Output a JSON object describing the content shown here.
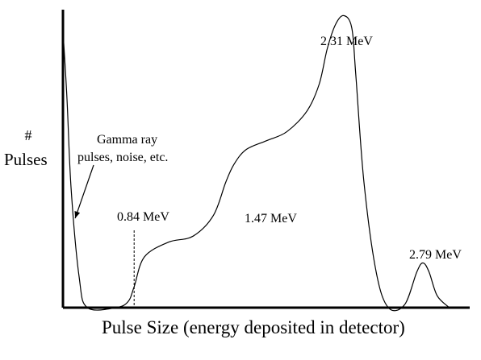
{
  "chart_data": {
    "type": "line",
    "title": "",
    "xlabel": "Pulse Size (energy deposited in detector)",
    "ylabel_symbol": "#",
    "ylabel": "Pulses",
    "grid": false,
    "legend": "none",
    "series": [
      {
        "color": "#000000",
        "points": [
          [
            0.0,
            0.93
          ],
          [
            0.01,
            0.7
          ],
          [
            0.02,
            0.4
          ],
          [
            0.04,
            0.1
          ],
          [
            0.06,
            0.0
          ],
          [
            0.13,
            0.0
          ],
          [
            0.16,
            0.02
          ],
          [
            0.175,
            0.07
          ],
          [
            0.2,
            0.17
          ],
          [
            0.26,
            0.22
          ],
          [
            0.32,
            0.24
          ],
          [
            0.37,
            0.31
          ],
          [
            0.4,
            0.42
          ],
          [
            0.42,
            0.48
          ],
          [
            0.45,
            0.53
          ],
          [
            0.5,
            0.56
          ],
          [
            0.55,
            0.59
          ],
          [
            0.6,
            0.66
          ],
          [
            0.63,
            0.75
          ],
          [
            0.65,
            0.87
          ],
          [
            0.67,
            0.95
          ],
          [
            0.69,
            0.98
          ],
          [
            0.71,
            0.94
          ],
          [
            0.72,
            0.78
          ],
          [
            0.74,
            0.42
          ],
          [
            0.77,
            0.12
          ],
          [
            0.8,
            0.0
          ],
          [
            0.84,
            0.01
          ],
          [
            0.87,
            0.12
          ],
          [
            0.885,
            0.15
          ],
          [
            0.9,
            0.12
          ],
          [
            0.92,
            0.04
          ],
          [
            0.95,
            0.0
          ]
        ]
      }
    ],
    "annotations": [
      {
        "id": "noise",
        "text_lines": [
          "Gamma ray",
          "pulses, noise, etc."
        ],
        "points_to_x": 0.03,
        "points_to_y": 0.3
      },
      {
        "id": "e084",
        "text": "0.84 MeV",
        "x": 0.175,
        "dashed_marker": true
      },
      {
        "id": "e147",
        "text": "1.47 MeV",
        "x": 0.42
      },
      {
        "id": "e231",
        "text": "2.31 MeV",
        "x": 0.69
      },
      {
        "id": "e279",
        "text": "2.79 MeV",
        "x": 0.885
      }
    ]
  }
}
